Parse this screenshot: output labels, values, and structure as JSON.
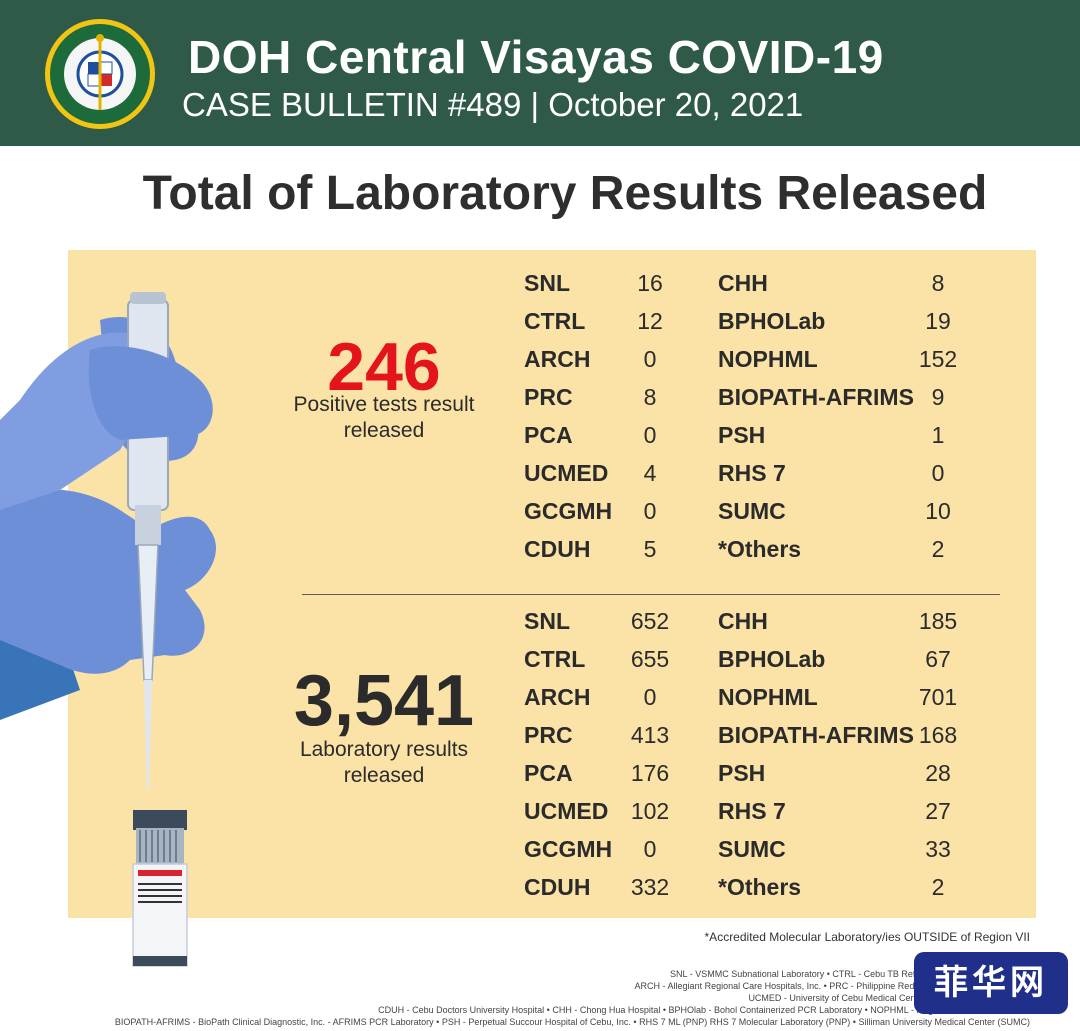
{
  "header": {
    "title": "DOH Central Visayas COVID-19",
    "subtitle": "CASE BULLETIN #489 | October 20, 2021",
    "seal_icon": "doh-seal-icon",
    "seal_text_top": "REPUBLIC OF THE PHILIPPINES",
    "seal_text_bottom": "DEPARTMENT OF HEALTH"
  },
  "main_title": "Total of Laboratory Results Released",
  "positive": {
    "total": "246",
    "label_line1": "Positive tests result",
    "label_line2": "released",
    "left": [
      {
        "name": "SNL",
        "value": "16"
      },
      {
        "name": "CTRL",
        "value": "12"
      },
      {
        "name": "ARCH",
        "value": "0"
      },
      {
        "name": "PRC",
        "value": "8"
      },
      {
        "name": "PCA",
        "value": "0"
      },
      {
        "name": "UCMED",
        "value": "4"
      },
      {
        "name": "GCGMH",
        "value": "0"
      },
      {
        "name": "CDUH",
        "value": "5"
      }
    ],
    "right": [
      {
        "name": "CHH",
        "value": "8"
      },
      {
        "name": "BPHOLab",
        "value": "19"
      },
      {
        "name": "NOPHML",
        "value": "152"
      },
      {
        "name": "BIOPATH-AFRIMS",
        "value": "9"
      },
      {
        "name": "PSH",
        "value": "1"
      },
      {
        "name": "RHS 7",
        "value": "0"
      },
      {
        "name": "SUMC",
        "value": "10"
      },
      {
        "name": "*Others",
        "value": "2"
      }
    ]
  },
  "laboratory": {
    "total": "3,541",
    "label_line1": "Laboratory results",
    "label_line2": "released",
    "left": [
      {
        "name": "SNL",
        "value": "652"
      },
      {
        "name": "CTRL",
        "value": "655"
      },
      {
        "name": "ARCH",
        "value": "0"
      },
      {
        "name": "PRC",
        "value": "413"
      },
      {
        "name": "PCA",
        "value": "176"
      },
      {
        "name": "UCMED",
        "value": "102"
      },
      {
        "name": "GCGMH",
        "value": "0"
      },
      {
        "name": "CDUH",
        "value": "332"
      }
    ],
    "right": [
      {
        "name": "CHH",
        "value": "185"
      },
      {
        "name": "BPHOLab",
        "value": "67"
      },
      {
        "name": "NOPHML",
        "value": "701"
      },
      {
        "name": "BIOPATH-AFRIMS",
        "value": "168"
      },
      {
        "name": "PSH",
        "value": "28"
      },
      {
        "name": "RHS 7",
        "value": "27"
      },
      {
        "name": "SUMC",
        "value": "33"
      },
      {
        "name": "*Others",
        "value": "2"
      }
    ]
  },
  "footnote": "*Accredited Molecular Laboratory/ies OUTSIDE of Region VII",
  "legend_lines": [
    "SNL - VSMMC Subnational Laboratory • CTRL - Cebu TB Reference Laboratory Molecular",
    "ARCH - Allegiant Regional Care Hospitals, Inc. • PRC - Philippine Red Cross • PCA - Prime Care Al",
    "UCMED - University of Cebu Medical Center • GCGMH - Gov. Celestin",
    "CDUH - Cebu Doctors University Hospital • CHH - Chong Hua Hospital • BPHOlab - Bohol Containerized PCR Laboratory • NOPHML - Negros Oriental Provincial H",
    "BIOPATH-AFRIMS - BioPath Clinical Diagnostic, Inc. - AFRIMS PCR Laboratory • PSH - Perpetual Succour Hospital of Cebu, Inc. • RHS 7 ML (PNP) RHS 7 Molecular Laboratory (PNP) • Silliman University Medical Center (SUMC)"
  ],
  "watermark": "菲华网",
  "illustration_icon": "gloved-hand-pipette-icon",
  "colors": {
    "header": "#2e5a47",
    "panel": "#fbe3a8",
    "positive": "#e3141b"
  }
}
